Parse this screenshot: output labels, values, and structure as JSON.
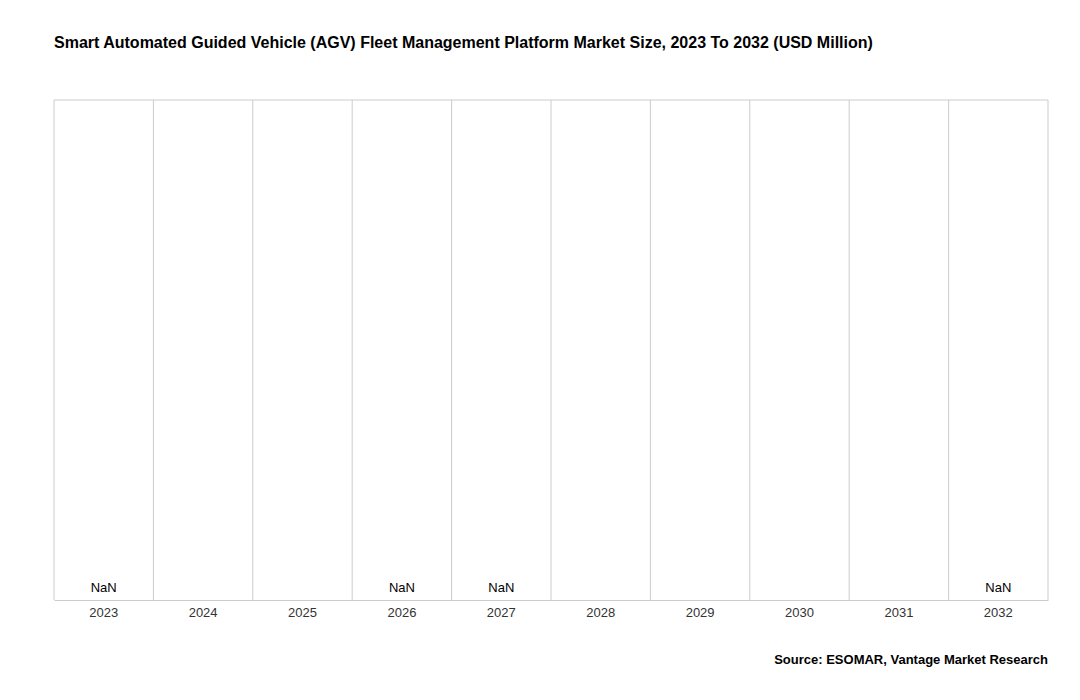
{
  "chart_data": {
    "type": "bar",
    "title": "Smart Automated Guided Vehicle (AGV) Fleet Management Platform Market Size, 2023 To 2032 (USD Million)",
    "categories": [
      "2023",
      "2024",
      "2025",
      "2026",
      "2027",
      "2028",
      "2029",
      "2030",
      "2031",
      "2032"
    ],
    "values": [
      null,
      null,
      null,
      null,
      null,
      null,
      null,
      null,
      null,
      null
    ],
    "data_labels": true,
    "value_labels": [
      "NaN",
      null,
      null,
      "NaN",
      "NaN",
      null,
      null,
      null,
      null,
      "NaN"
    ],
    "annotations": [
      "Source: ESOMAR, Vantage Market Research"
    ],
    "ylim": [
      0,
      1
    ],
    "yticks": [],
    "tick_labels": "x",
    "grid": true
  }
}
